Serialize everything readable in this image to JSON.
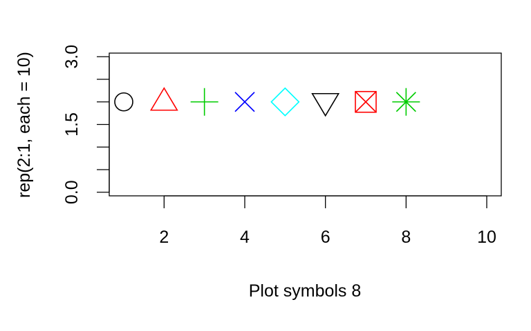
{
  "chart_data": {
    "type": "scatter",
    "title": "",
    "xlabel": "Plot symbols 8",
    "ylabel": "rep(2:1, each = 10)",
    "xlim": [
      0.64,
      10.36
    ],
    "ylim": [
      -0.08,
      3.08
    ],
    "xticks": [
      2,
      4,
      6,
      8,
      10
    ],
    "xtick_labels": [
      "2",
      "4",
      "6",
      "8",
      "10"
    ],
    "yticks": [
      0,
      0.5,
      1,
      1.5,
      2,
      2.5,
      3
    ],
    "ytick_labels": [
      "0.0",
      "",
      "",
      "1.5",
      "",
      "",
      "3.0"
    ],
    "grid": false,
    "points": [
      {
        "x": 1,
        "y": 2,
        "symbol": "circle",
        "color": "#000000"
      },
      {
        "x": 2,
        "y": 2,
        "symbol": "triangle-up",
        "color": "#ff0000"
      },
      {
        "x": 3,
        "y": 2,
        "symbol": "plus",
        "color": "#00cc00"
      },
      {
        "x": 4,
        "y": 2,
        "symbol": "cross",
        "color": "#0000ff"
      },
      {
        "x": 5,
        "y": 2,
        "symbol": "diamond",
        "color": "#00ffff"
      },
      {
        "x": 6,
        "y": 2,
        "symbol": "triangle-down",
        "color": "#000000"
      },
      {
        "x": 7,
        "y": 2,
        "symbol": "square-cross",
        "color": "#ff0000"
      },
      {
        "x": 8,
        "y": 2,
        "symbol": "asterisk",
        "color": "#00cc00"
      }
    ]
  }
}
